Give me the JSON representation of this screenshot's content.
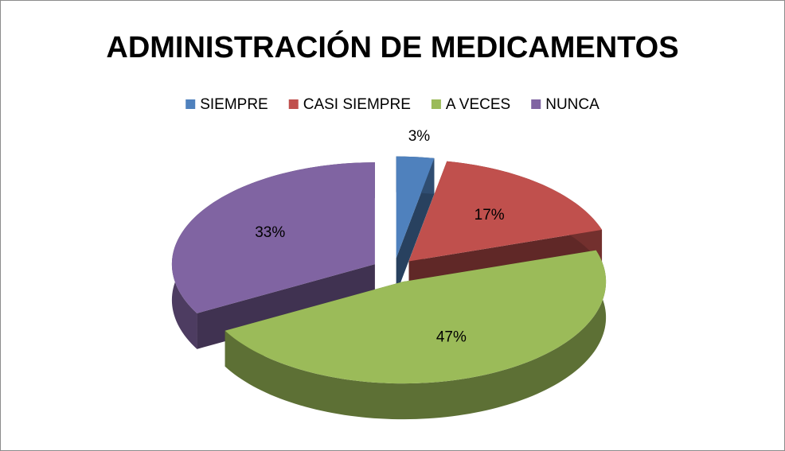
{
  "chart_data": {
    "type": "pie3d",
    "title": "ADMINISTRACIÓN DE MEDICAMENTOS",
    "categories": [
      "SIEMPRE",
      "CASI SIEMPRE",
      "A VECES",
      "NUNCA"
    ],
    "values": [
      3,
      17,
      47,
      33
    ],
    "value_labels": [
      "3%",
      "17%",
      "47%",
      "33%"
    ],
    "colors": [
      "#4f81bd",
      "#c0504d",
      "#9bbb59",
      "#8064a2"
    ],
    "legend": "top"
  }
}
